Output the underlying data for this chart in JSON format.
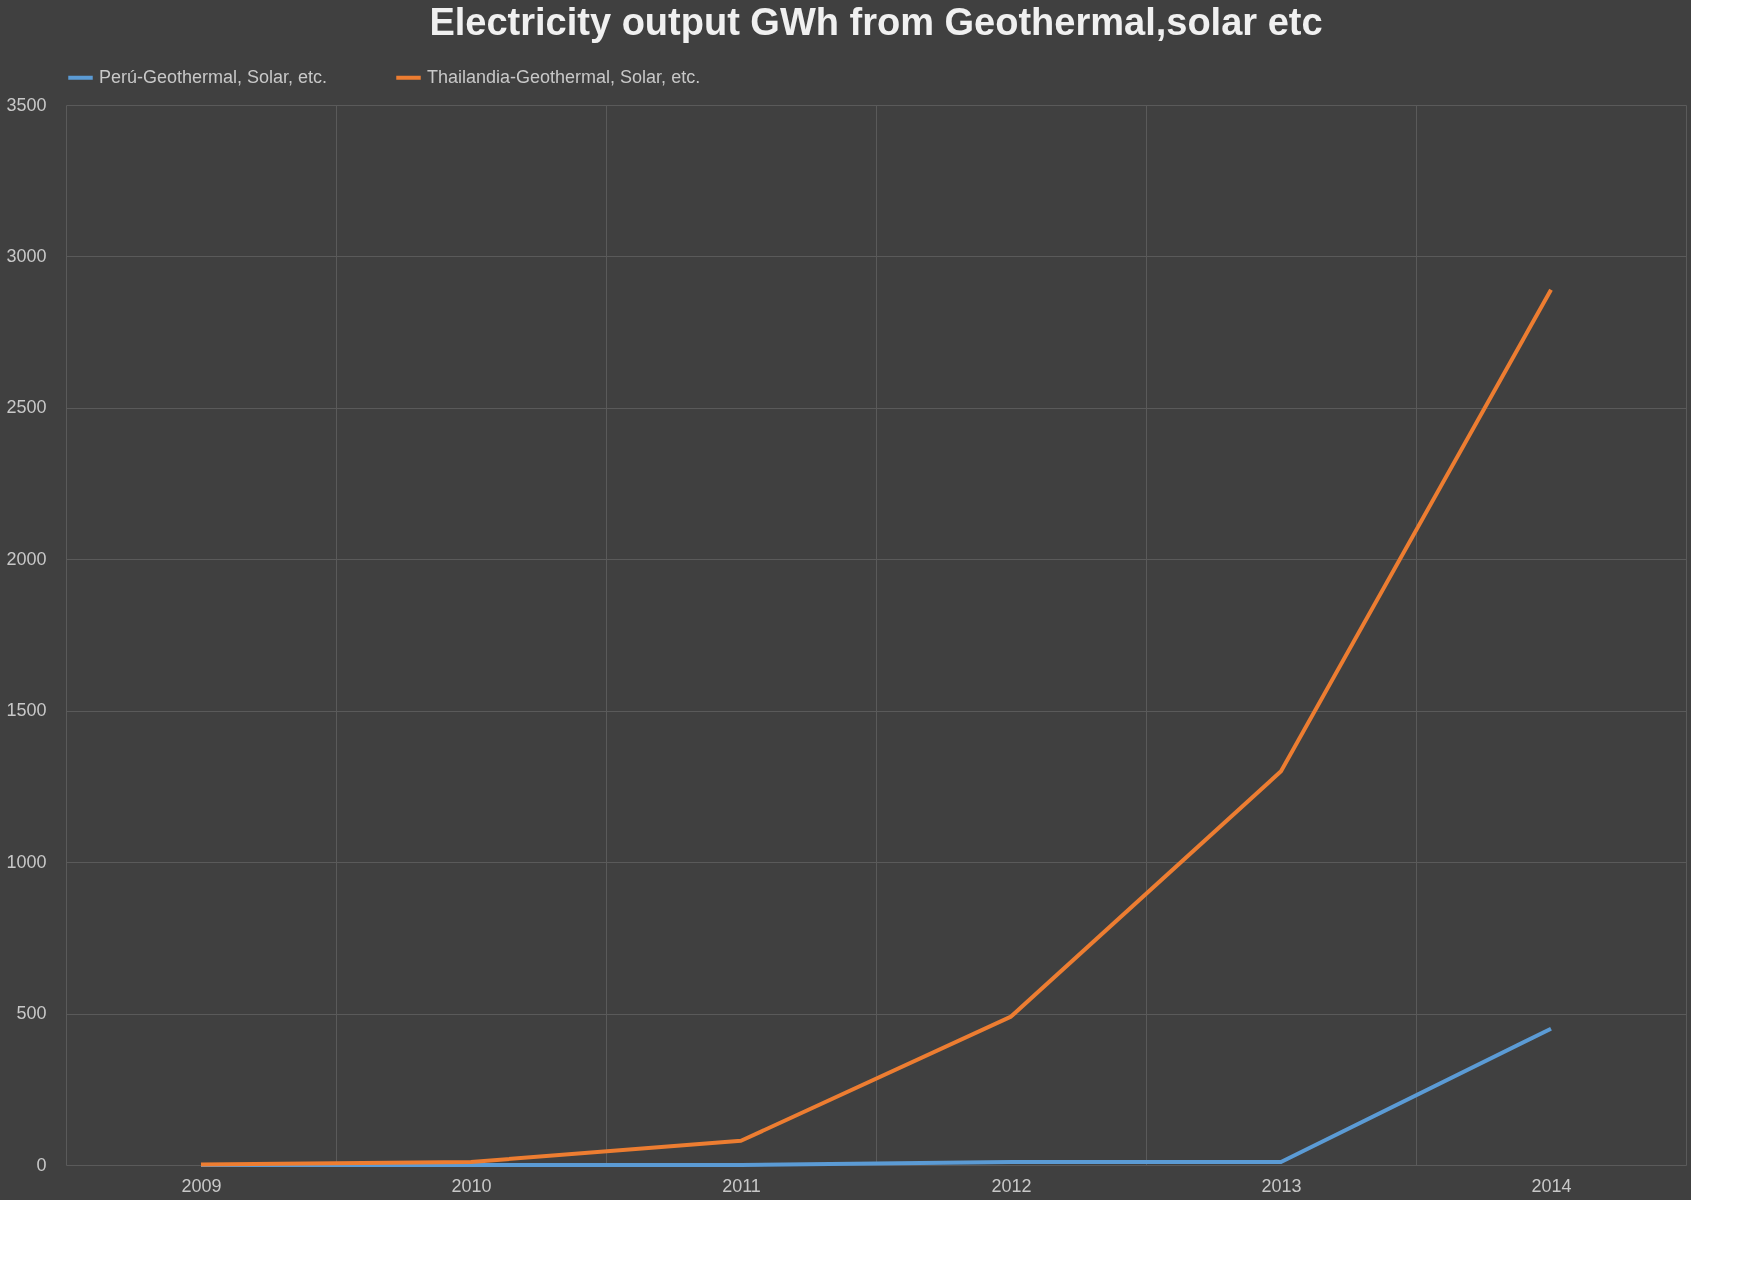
{
  "chart_data": {
    "type": "line",
    "title": "Electricity output GWh from Geothermal,solar etc",
    "categories": [
      "2009",
      "2010",
      "2011",
      "2012",
      "2013",
      "2014"
    ],
    "series": [
      {
        "name": "Perú-Geothermal, Solar, etc.",
        "color": "#5b9bd5",
        "values": [
          0,
          0,
          0,
          10,
          10,
          450
        ]
      },
      {
        "name": "Thailandia-Geothermal, Solar, etc.",
        "color": "#ed7d31",
        "values": [
          2,
          10,
          80,
          490,
          1300,
          2890
        ]
      }
    ],
    "ylim": [
      0,
      3500
    ],
    "yticks": [
      0,
      500,
      1000,
      1500,
      2000,
      2500,
      3000,
      3500
    ],
    "grid": true,
    "legend": "top",
    "marker": "none",
    "line_style": "solid"
  }
}
